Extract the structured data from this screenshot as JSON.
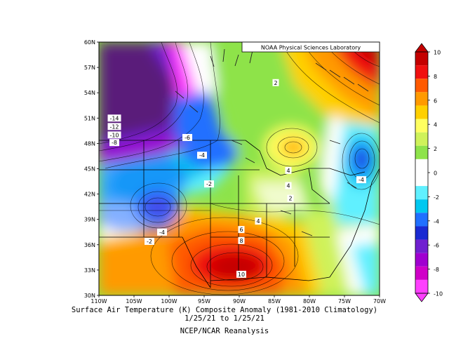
{
  "credit": "NOAA Physical Sciences Laboratory",
  "caption": {
    "line1": "Surface Air Temperature (K) Composite Anomaly (1981-2010 Climatology)",
    "line2": "1/25/21  to 1/25/21",
    "line3": "NCEP/NCAR Reanalysis"
  },
  "map": {
    "lon_range": [
      -110,
      -70
    ],
    "lat_range": [
      30,
      60
    ],
    "lon_ticks": [
      "110W",
      "105W",
      "100W",
      "95W",
      "90W",
      "85W",
      "80W",
      "75W",
      "70W"
    ],
    "lat_ticks": [
      "60N",
      "57N",
      "54N",
      "51N",
      "48N",
      "45N",
      "42N",
      "39N",
      "36N",
      "33N",
      "30N"
    ],
    "contour_labels": [
      {
        "text": "2",
        "lon": -84.8,
        "lat": 55.2
      },
      {
        "text": "-14",
        "lon": -107.8,
        "lat": 51.0
      },
      {
        "text": "-12",
        "lon": -107.8,
        "lat": 50.0
      },
      {
        "text": "-10",
        "lon": -107.8,
        "lat": 49.0
      },
      {
        "text": "-8",
        "lon": -107.8,
        "lat": 48.1
      },
      {
        "text": "-6",
        "lon": -97.4,
        "lat": 48.7
      },
      {
        "text": "-4",
        "lon": -95.3,
        "lat": 46.6
      },
      {
        "text": "-2",
        "lon": -94.3,
        "lat": 43.2
      },
      {
        "text": "-4",
        "lon": -101.0,
        "lat": 37.5
      },
      {
        "text": "-2",
        "lon": -102.8,
        "lat": 36.4
      },
      {
        "text": "4",
        "lon": -83.0,
        "lat": 44.8
      },
      {
        "text": "4",
        "lon": -83.0,
        "lat": 43.0
      },
      {
        "text": "2",
        "lon": -82.7,
        "lat": 41.5
      },
      {
        "text": "4",
        "lon": -87.3,
        "lat": 38.8
      },
      {
        "text": "6",
        "lon": -89.7,
        "lat": 37.8
      },
      {
        "text": "8",
        "lon": -89.7,
        "lat": 36.5
      },
      {
        "text": "10",
        "lon": -89.7,
        "lat": 32.5
      },
      {
        "text": "-4",
        "lon": -72.6,
        "lat": 43.7
      }
    ]
  },
  "colorbar": {
    "labels": [
      "10",
      "8",
      "6",
      "4",
      "2",
      "0",
      "-2",
      "-4",
      "-6",
      "-8",
      "-10"
    ],
    "colors": [
      "#c40000",
      "#f01010",
      "#ff5a00",
      "#ff9a00",
      "#ffd000",
      "#ffff60",
      "#cff25a",
      "#8ee34a",
      "#ffffff",
      "#ffffff",
      "#60f0ff",
      "#00c8f0",
      "#2070ff",
      "#1a2ad2",
      "#7020d0",
      "#a000d0",
      "#d000c8",
      "#ff40ff"
    ]
  }
}
